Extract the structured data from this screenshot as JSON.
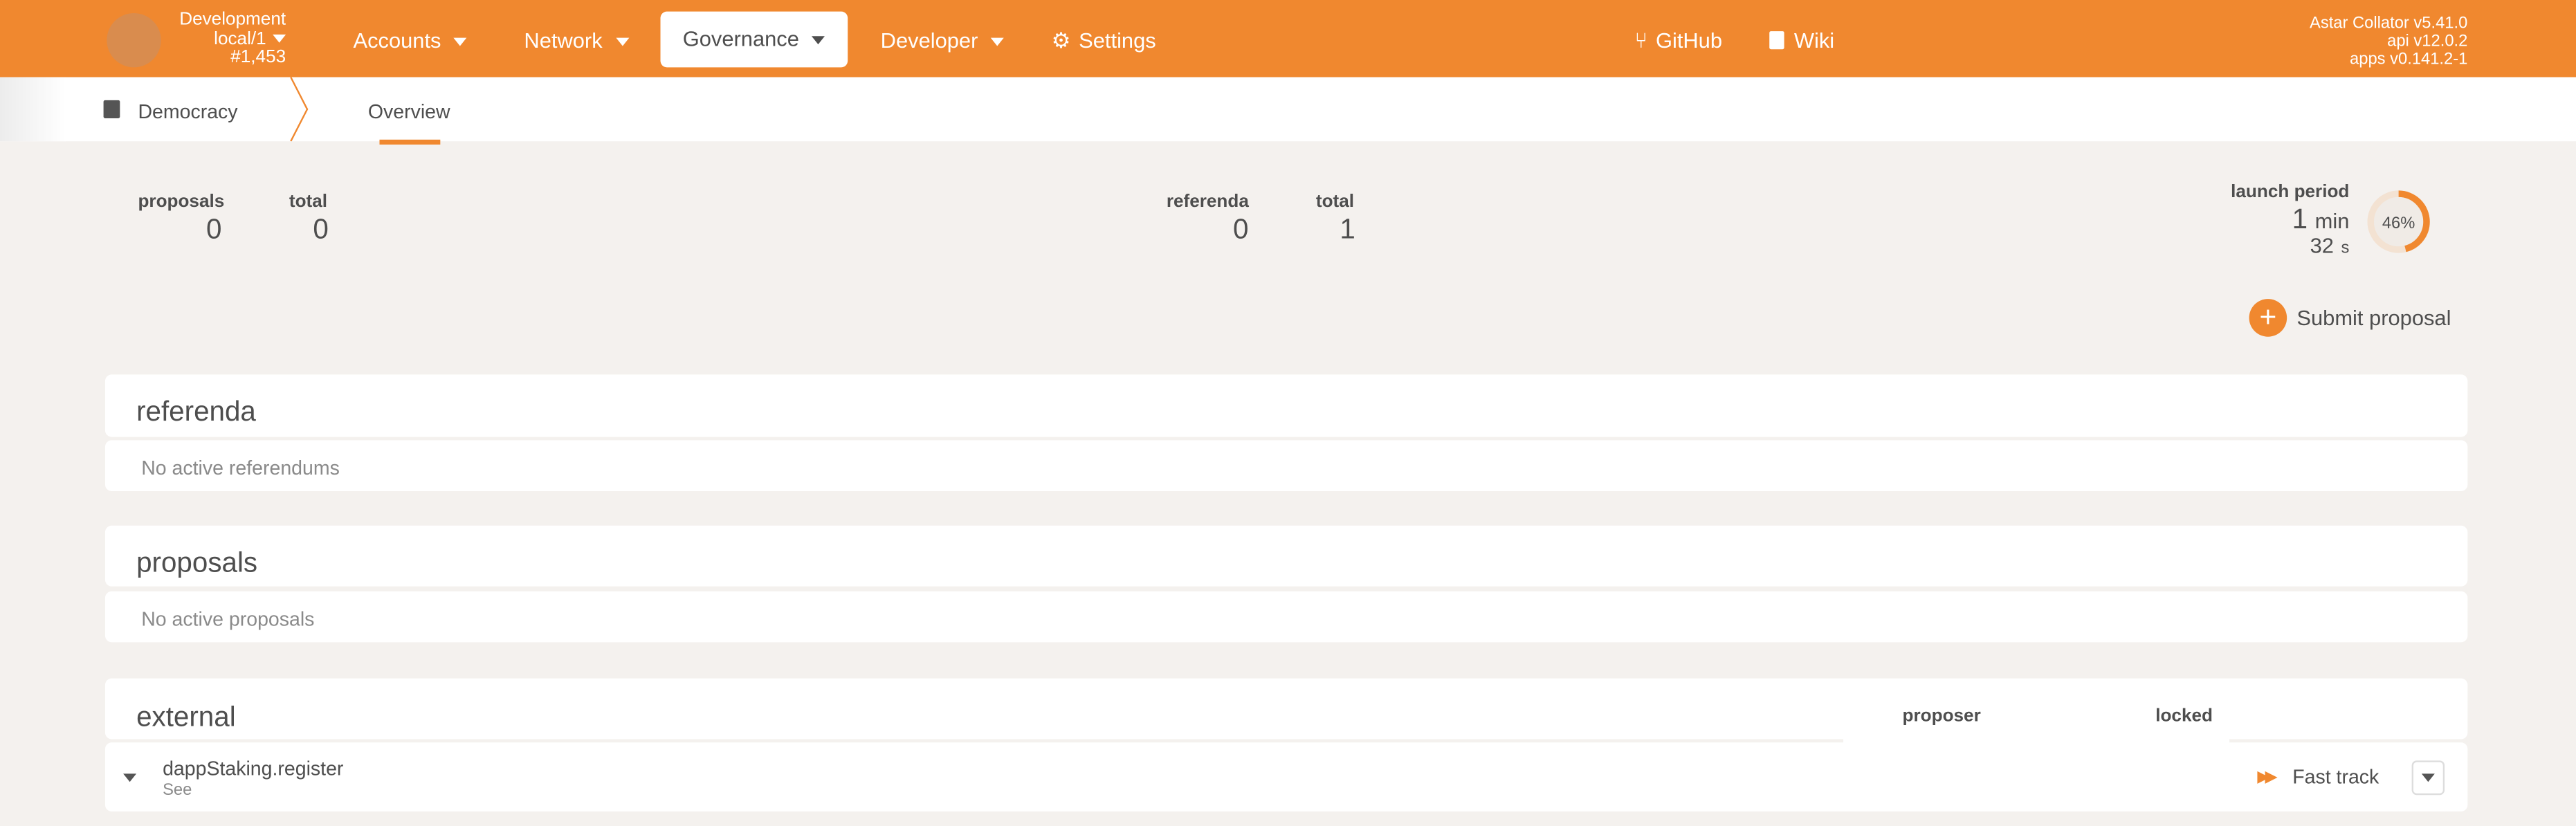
{
  "header": {
    "chain_name": "Development",
    "chain_node": "local/1",
    "block": "#1,453",
    "nav": [
      {
        "label": "Accounts"
      },
      {
        "label": "Network"
      },
      {
        "label": "Governance"
      },
      {
        "label": "Developer"
      },
      {
        "label": "Settings"
      }
    ],
    "links": [
      {
        "label": "GitHub",
        "icon": "git-branch-icon"
      },
      {
        "label": "Wiki",
        "icon": "book-icon"
      }
    ],
    "versions": [
      "Astar Collator v5.41.0",
      "api v12.0.2",
      "apps v0.141.2-1"
    ],
    "accent": "#f0882f"
  },
  "subnav": {
    "section": "Democracy",
    "tab": "Overview"
  },
  "summary": {
    "proposals_label": "proposals",
    "proposals": "0",
    "proposals_total_label": "total",
    "proposals_total": "0",
    "referenda_label": "referenda",
    "referenda": "0",
    "referenda_total_label": "total",
    "referenda_total": "1",
    "launch_label": "launch period",
    "launch_min": "1",
    "launch_min_unit": "min",
    "launch_sec": "32",
    "launch_sec_unit": "s",
    "launch_percent": 46,
    "launch_percent_text": "46%"
  },
  "submit_label": "Submit proposal",
  "referenda": {
    "title": "referenda",
    "empty": "No active referendums"
  },
  "proposals": {
    "title": "proposals",
    "empty": "No active proposals"
  },
  "external": {
    "title": "external",
    "col_proposer": "proposer",
    "col_locked": "locked",
    "row": {
      "call": "dappStaking.register",
      "sub": "See",
      "action": "Fast track"
    }
  }
}
